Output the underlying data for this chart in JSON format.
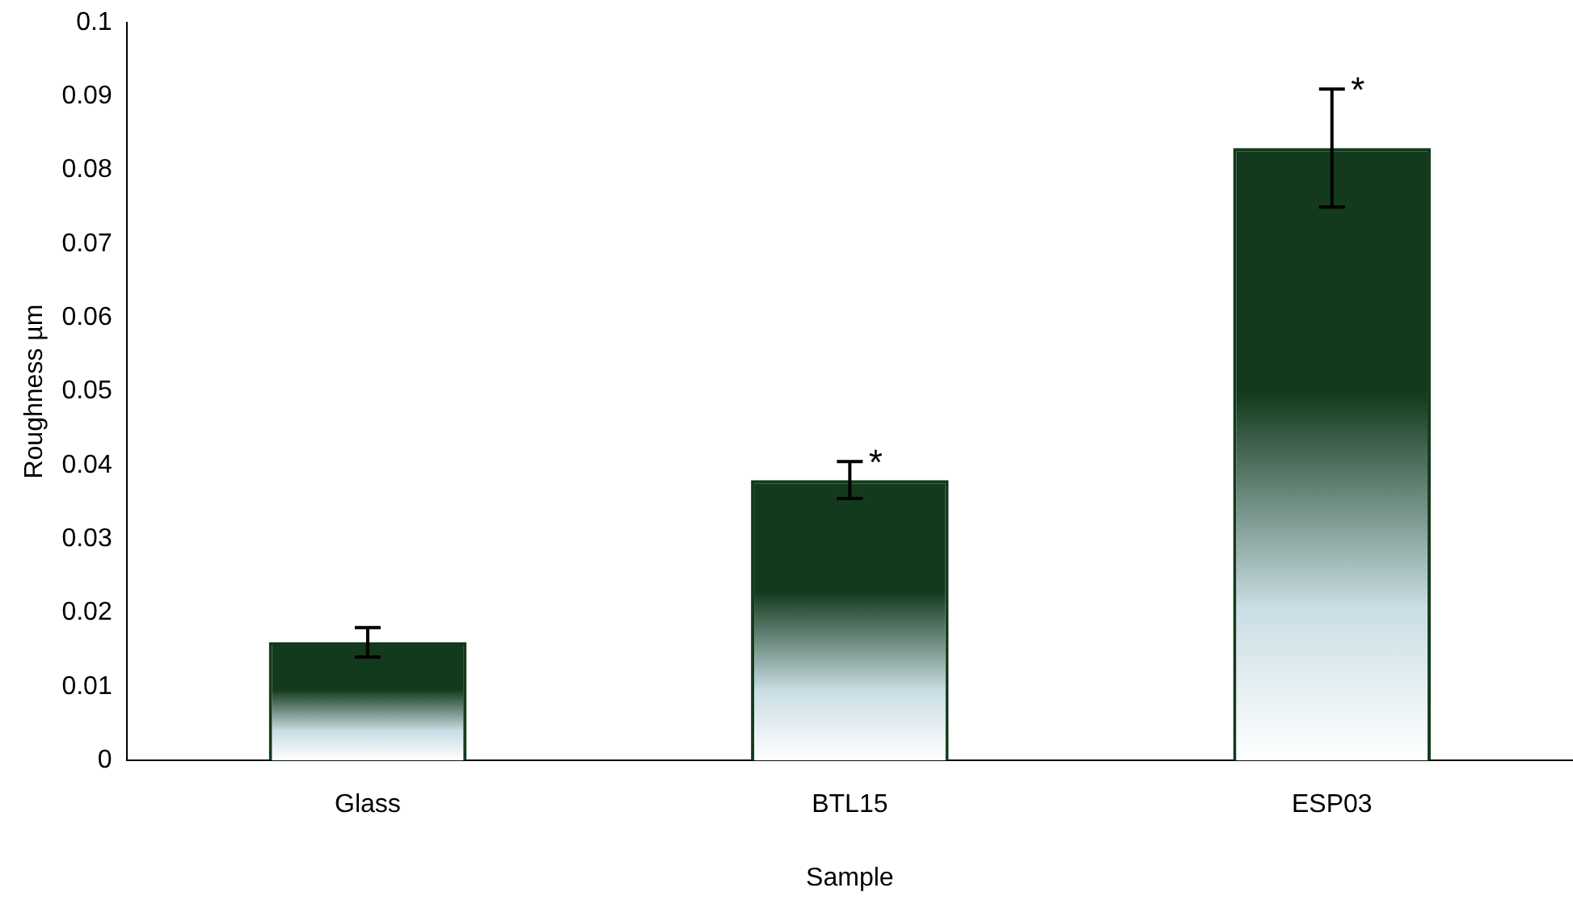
{
  "chart_data": {
    "type": "bar",
    "xlabel": "Sample",
    "ylabel": "Roughness µm",
    "categories": [
      "Glass",
      "BTL15",
      "ESP03"
    ],
    "values": [
      0.016,
      0.038,
      0.083
    ],
    "errors": [
      0.002,
      0.0025,
      0.008
    ],
    "color": "#133a1c",
    "ylim": [
      0,
      0.1
    ],
    "yticks": [
      0,
      0.01,
      0.02,
      0.03,
      0.04,
      0.05,
      0.06,
      0.07,
      0.08,
      0.09,
      0.1
    ],
    "grid": false,
    "legend": false,
    "annotations": [
      {
        "text": "*",
        "x": "BTL15",
        "y": 0.0405
      },
      {
        "text": "*",
        "x": "ESP03",
        "y": 0.091
      }
    ]
  }
}
